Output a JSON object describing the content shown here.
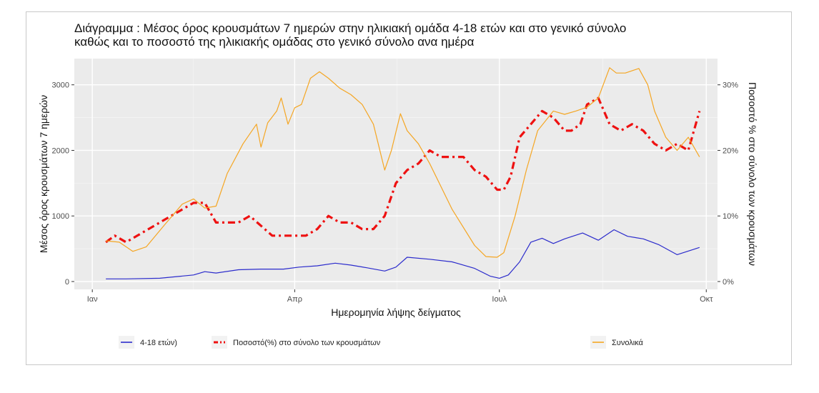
{
  "chart_data": {
    "type": "line",
    "title_line1": "Διάγραμμα     : Μέσος όρος κρουσμάτων 7 ημερών στην ηλικιακή ομάδα 4-18 ετών και στο γενικό σύνολο",
    "title_line2": "καθώς και το ποσοστό της ηλικιακής ομάδας στο γενικό σύνολο ανα ημέρα",
    "xlabel": "Ημερομηνία λήψης δείγματος",
    "ylabel_left": "Μέσος όρος κρουσμάτων 7 ημερών",
    "ylabel_right": "Ποσοστό % στο σύνολο των κρουσμάτων",
    "x_ticks": [
      "Ιαν",
      "Απρ",
      "Ιουλ",
      "Οκτ"
    ],
    "x_tick_days": [
      0,
      90,
      181,
      273
    ],
    "xlim_days": [
      -8,
      278
    ],
    "ylim_left": [
      -120,
      3400
    ],
    "yticks_left": [
      0,
      1000,
      2000,
      3000
    ],
    "ylim_right_percent": [
      -1.2,
      34
    ],
    "yticks_right_labels": [
      "0%",
      "10%",
      "20%",
      "30%"
    ],
    "yticks_right_values": [
      0,
      10,
      20,
      30
    ],
    "grid": true,
    "legend_position": "bottom",
    "series": [
      {
        "name": "4-18 ετών)",
        "axis": "left",
        "color": "#2b2bcc",
        "style": "solid",
        "x_days": [
          6,
          15,
          30,
          45,
          50,
          55,
          65,
          75,
          85,
          92,
          100,
          108,
          115,
          122,
          130,
          135,
          140,
          150,
          160,
          170,
          177,
          181,
          185,
          190,
          195,
          200,
          205,
          210,
          218,
          225,
          232,
          238,
          245,
          252,
          260,
          270
        ],
        "values": [
          40,
          40,
          50,
          100,
          150,
          130,
          180,
          190,
          190,
          220,
          240,
          280,
          250,
          210,
          160,
          220,
          370,
          340,
          300,
          200,
          80,
          50,
          100,
          300,
          600,
          660,
          580,
          650,
          740,
          630,
          790,
          690,
          650,
          560,
          410,
          520
        ]
      },
      {
        "name": "Ποσοστό(%) στο σύνολο των κρουσμάτων",
        "axis": "right",
        "color": "#ee1111",
        "style": "dashdot",
        "x_days": [
          6,
          10,
          15,
          20,
          30,
          40,
          45,
          50,
          55,
          60,
          65,
          70,
          80,
          90,
          95,
          100,
          105,
          110,
          115,
          120,
          125,
          130,
          135,
          140,
          145,
          150,
          155,
          160,
          165,
          170,
          175,
          180,
          183,
          186,
          190,
          195,
          200,
          205,
          210,
          213,
          217,
          220,
          225,
          230,
          235,
          240,
          245,
          250,
          255,
          260,
          265,
          270
        ],
        "values": [
          6,
          7,
          6,
          7,
          9,
          11,
          12,
          12,
          9,
          9,
          9,
          10,
          7,
          7,
          7,
          8,
          10,
          9,
          9,
          8,
          8,
          10,
          15,
          17,
          18,
          20,
          19,
          19,
          19,
          17,
          16,
          14,
          14,
          16,
          22,
          24,
          26,
          25,
          23,
          23,
          24,
          27,
          28,
          24,
          23,
          24,
          23,
          21,
          20,
          21,
          20,
          26
        ]
      },
      {
        "name": "Συνολικά",
        "axis": "left",
        "color": "#f5a623",
        "style": "solid",
        "x_days": [
          6,
          12,
          18,
          24,
          32,
          40,
          45,
          50,
          55,
          60,
          67,
          73,
          75,
          78,
          82,
          84,
          87,
          90,
          93,
          97,
          101,
          105,
          110,
          115,
          120,
          125,
          130,
          133,
          137,
          140,
          145,
          150,
          160,
          170,
          175,
          180,
          183,
          188,
          193,
          198,
          205,
          210,
          215,
          220,
          225,
          230,
          233,
          237,
          243,
          247,
          250,
          255,
          260,
          265,
          270
        ],
        "values": [
          620,
          600,
          460,
          530,
          860,
          1180,
          1260,
          1120,
          1150,
          1650,
          2100,
          2400,
          2050,
          2420,
          2600,
          2800,
          2400,
          2650,
          2700,
          3100,
          3200,
          3100,
          2950,
          2850,
          2700,
          2400,
          1700,
          2000,
          2560,
          2300,
          2100,
          1800,
          1100,
          550,
          380,
          370,
          440,
          1000,
          1700,
          2300,
          2600,
          2550,
          2600,
          2660,
          2800,
          3260,
          3180,
          3180,
          3250,
          3000,
          2600,
          2200,
          2000,
          2200,
          1900
        ]
      }
    ]
  }
}
